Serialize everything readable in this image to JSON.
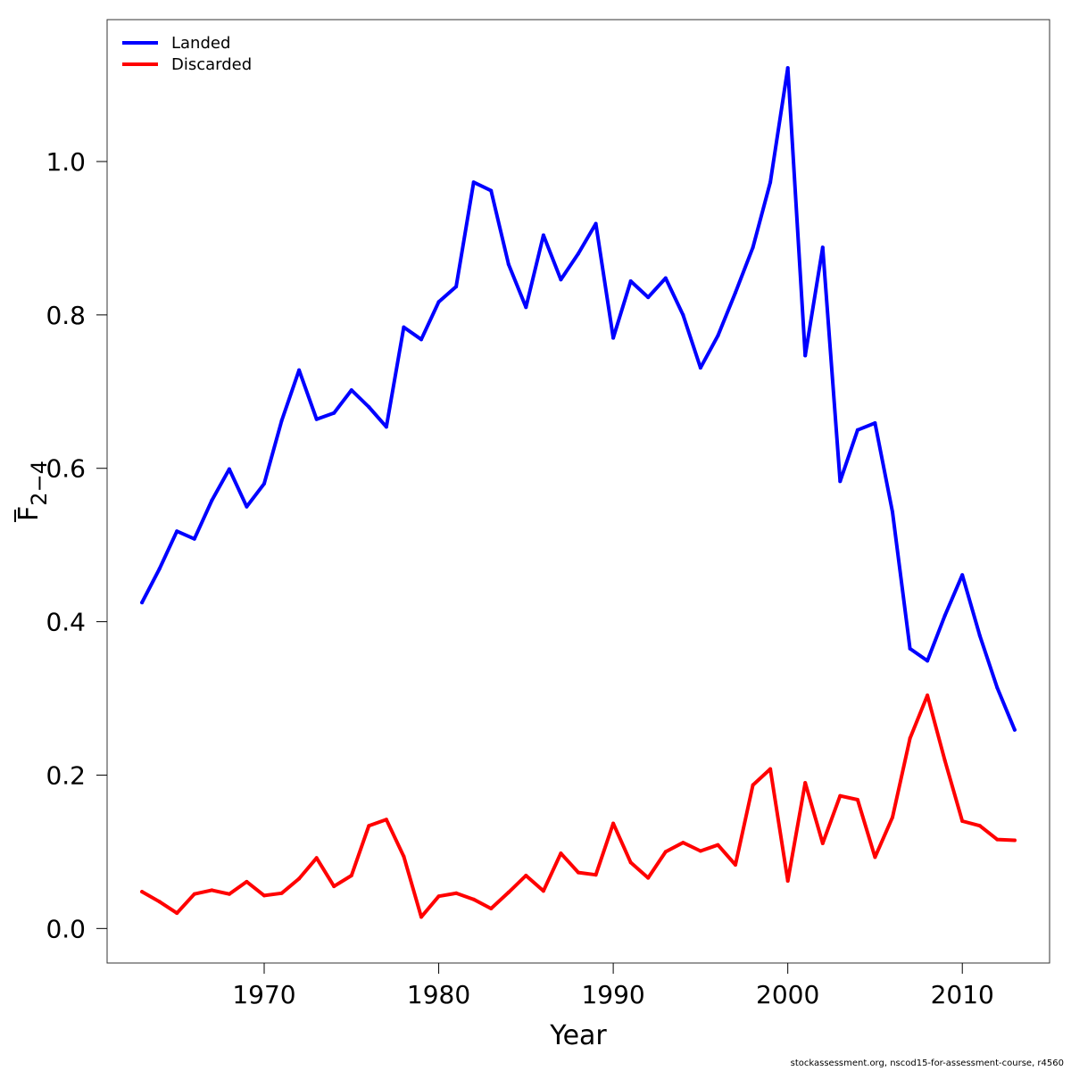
{
  "chart_data": {
    "type": "line",
    "xlabel": "Year",
    "ylabel": {
      "main": "F",
      "subscript": "2−4"
    },
    "xlim": [
      1961,
      2015
    ],
    "ylim": [
      -0.045,
      1.185
    ],
    "xticks": [
      1970,
      1980,
      1990,
      2000,
      2010
    ],
    "xtick_labels": [
      "1970",
      "1980",
      "1990",
      "2000",
      "2010"
    ],
    "yticks": [
      0.0,
      0.2,
      0.4,
      0.6,
      0.8,
      1.0
    ],
    "ytick_labels": [
      "0.0",
      "0.2",
      "0.4",
      "0.6",
      "0.8",
      "1.0"
    ],
    "grid": false,
    "legend_position": "top-left",
    "x": [
      1963,
      1964,
      1965,
      1966,
      1967,
      1968,
      1969,
      1970,
      1971,
      1972,
      1973,
      1974,
      1975,
      1976,
      1977,
      1978,
      1979,
      1980,
      1981,
      1982,
      1983,
      1984,
      1985,
      1986,
      1987,
      1988,
      1989,
      1990,
      1991,
      1992,
      1993,
      1994,
      1995,
      1996,
      1997,
      1998,
      1999,
      2000,
      2001,
      2002,
      2003,
      2004,
      2005,
      2006,
      2007,
      2008,
      2009,
      2010,
      2011,
      2012,
      2013
    ],
    "series": [
      {
        "name": "Landed",
        "color": "#0000ff",
        "values": [
          0.425,
          0.469,
          0.518,
          0.508,
          0.558,
          0.599,
          0.55,
          0.58,
          0.662,
          0.728,
          0.664,
          0.672,
          0.702,
          0.68,
          0.654,
          0.784,
          0.768,
          0.817,
          0.837,
          0.973,
          0.962,
          0.866,
          0.81,
          0.904,
          0.846,
          0.88,
          0.919,
          0.77,
          0.844,
          0.823,
          0.848,
          0.8,
          0.731,
          0.773,
          0.829,
          0.888,
          0.973,
          1.122,
          0.747,
          0.888,
          0.583,
          0.65,
          0.659,
          0.543,
          0.365,
          0.349,
          0.408,
          0.461,
          0.382,
          0.314,
          0.259
        ]
      },
      {
        "name": "Discarded",
        "color": "#ff0000",
        "values": [
          0.048,
          0.035,
          0.02,
          0.045,
          0.05,
          0.045,
          0.061,
          0.043,
          0.046,
          0.065,
          0.092,
          0.055,
          0.069,
          0.134,
          0.142,
          0.094,
          0.015,
          0.042,
          0.046,
          0.038,
          0.026,
          0.047,
          0.069,
          0.049,
          0.098,
          0.073,
          0.07,
          0.137,
          0.086,
          0.066,
          0.1,
          0.112,
          0.101,
          0.109,
          0.083,
          0.187,
          0.208,
          0.062,
          0.19,
          0.111,
          0.173,
          0.168,
          0.093,
          0.145,
          0.248,
          0.304,
          0.219,
          0.14,
          0.134,
          0.116,
          0.115
        ]
      }
    ]
  },
  "footer": {
    "credit": "stockassessment.org, nscod15-for-assessment-course, r4560"
  }
}
